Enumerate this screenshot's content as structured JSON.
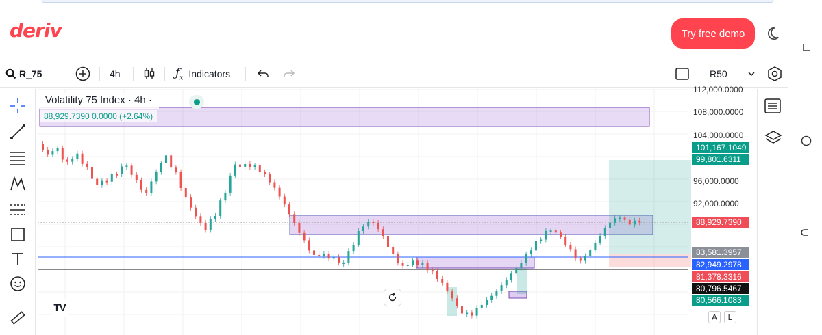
{
  "header": {
    "logo_text": "deriv",
    "demo_button": "Try free demo",
    "brand_color": "#ff444f"
  },
  "toolbar": {
    "symbol": "R_75",
    "interval": "4h",
    "indicators_label": "Indicators",
    "chart_style": "R50"
  },
  "chart": {
    "title": "Volatility 75 Index · 4h ·",
    "ohlc_text": "88,929.7390  0.0000 (+2.64%)",
    "axis_labels": [
      "112,000.0000",
      "108,000.0000",
      "104,000.0000",
      "96,000.0000",
      "92,000.0000"
    ],
    "badges": [
      {
        "text": "101,167.1049",
        "color": "#0a9e8a"
      },
      {
        "text": "99,801.6311",
        "color": "#0a9e8a"
      },
      {
        "text": "88,929.7390",
        "color": "#ef4d58"
      },
      {
        "text": "83,581.3957",
        "color": "#8b8f98"
      },
      {
        "text": "82,949.2978",
        "color": "#2962ff"
      },
      {
        "text": "81,378.3316",
        "color": "#ef4d58"
      },
      {
        "text": "80,796.5467",
        "color": "#111111"
      },
      {
        "text": "80,566.1083",
        "color": "#0a9e8a"
      }
    ],
    "scale_buttons": [
      "A",
      "L"
    ],
    "up_color": "#26a69a",
    "down_color": "#ef5350"
  },
  "icons": {
    "search": "search-icon",
    "add": "plus-circle-icon",
    "candles": "candlestick-icon",
    "indicators": "function-icon",
    "undo": "undo-icon",
    "redo": "redo-icon",
    "layout": "square-icon",
    "settings": "hexagon-settings-icon",
    "theme": "moon-icon"
  }
}
